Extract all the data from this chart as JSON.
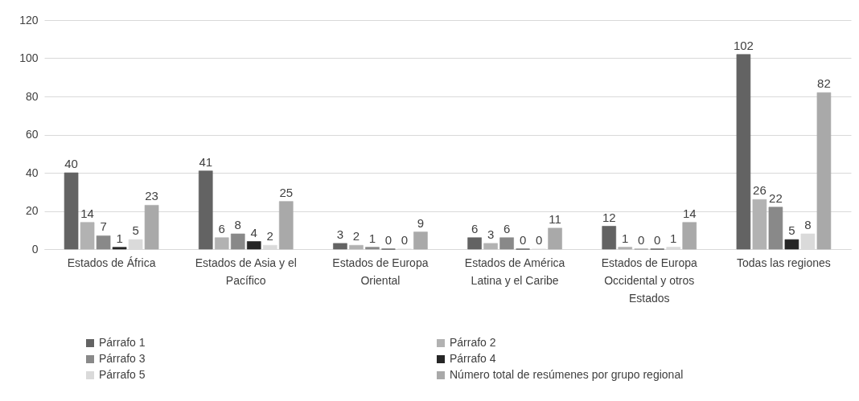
{
  "chart_data": {
    "type": "bar",
    "categories": [
      "Estados de África",
      "Estados de Asia y el Pacífico",
      "Estados de Europa Oriental",
      "Estados de América Latina y el Caribe",
      "Estados de Europa Occidental y otros Estados",
      "Todas las regiones"
    ],
    "series": [
      {
        "name": "Párrafo 1",
        "color": "#636363",
        "values": [
          40,
          41,
          3,
          6,
          12,
          102
        ]
      },
      {
        "name": "Párrafo 2",
        "color": "#b2b2b2",
        "values": [
          14,
          6,
          2,
          3,
          1,
          26
        ]
      },
      {
        "name": "Párrafo 3",
        "color": "#898989",
        "values": [
          7,
          8,
          1,
          6,
          0,
          22
        ]
      },
      {
        "name": "Párrafo 4",
        "color": "#262626",
        "values": [
          1,
          4,
          0,
          0,
          0,
          5
        ]
      },
      {
        "name": "Párrafo 5",
        "color": "#dadada",
        "values": [
          5,
          2,
          0,
          0,
          1,
          8
        ]
      },
      {
        "name": "Número total de resúmenes por grupo regional",
        "color": "#a9a9a9",
        "values": [
          23,
          25,
          9,
          11,
          14,
          82
        ]
      }
    ],
    "ylim": [
      0,
      120
    ],
    "yticks": [
      0,
      20,
      40,
      60,
      80,
      100,
      120
    ],
    "grid": "y",
    "legend": "bottom",
    "data_labels": true
  }
}
